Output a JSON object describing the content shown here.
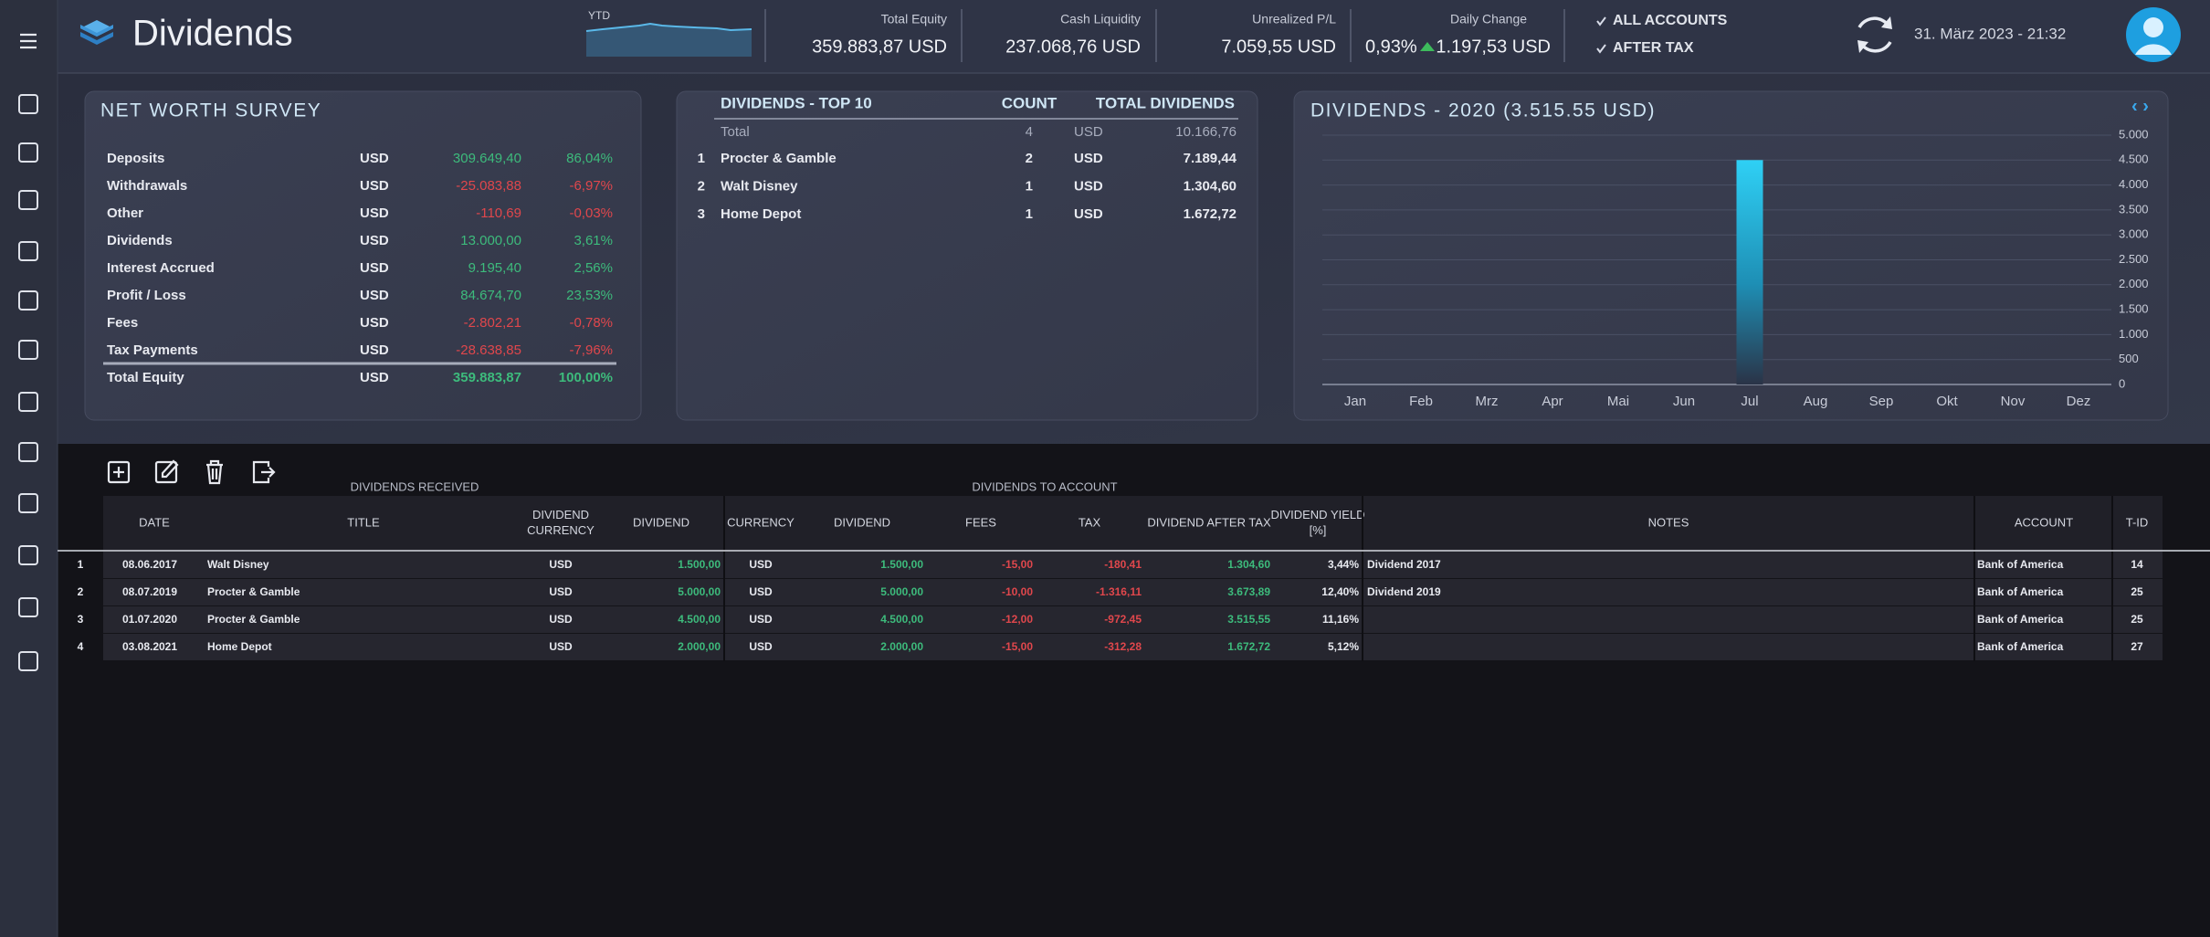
{
  "header": {
    "title": "Dividends",
    "sparkline_label": "YTD",
    "kpis": [
      {
        "label": "Total Equity",
        "value": "359.883,87 USD"
      },
      {
        "label": "Cash Liquidity",
        "value": "237.068,76 USD"
      },
      {
        "label": "Unrealized P/L",
        "value": "7.059,55 USD"
      }
    ],
    "daily_change": {
      "label": "Daily Change",
      "percent": "0,93%",
      "value": "1.197,53 USD"
    },
    "filters": [
      "ALL ACCOUNTS",
      "AFTER TAX"
    ],
    "datetime": "31. März 2023  -  21:32"
  },
  "net_worth": {
    "title": "NET WORTH SURVEY",
    "rows": [
      [
        "Deposits",
        "USD",
        "309.649,40",
        "86,04%"
      ],
      [
        "Withdrawals",
        "USD",
        "-25.083,88",
        "-6,97%"
      ],
      [
        "Other",
        "USD",
        "-110,69",
        "-0,03%"
      ],
      [
        "Dividends",
        "USD",
        "13.000,00",
        "3,61%"
      ],
      [
        "Interest Accrued",
        "USD",
        "9.195,40",
        "2,56%"
      ],
      [
        "Profit / Loss",
        "USD",
        "84.674,70",
        "23,53%"
      ],
      [
        "Fees",
        "USD",
        "-2.802,21",
        "-0,78%"
      ],
      [
        "Tax Payments",
        "USD",
        "-28.638,85",
        "-7,96%"
      ]
    ],
    "total": [
      "Total Equity",
      "USD",
      "359.883,87",
      "100,00%"
    ]
  },
  "top10": {
    "headers": [
      "DIVIDENDS - TOP 10",
      "COUNT",
      "TOTAL DIVIDENDS"
    ],
    "total": [
      "Total",
      "4",
      "USD",
      "10.166,76"
    ],
    "rows": [
      [
        "1",
        "Procter & Gamble",
        "2",
        "USD",
        "7.189,44"
      ],
      [
        "2",
        "Walt Disney",
        "1",
        "USD",
        "1.304,60"
      ],
      [
        "3",
        "Home Depot",
        "1",
        "USD",
        "1.672,72"
      ]
    ]
  },
  "chart_data": {
    "type": "bar",
    "title": "DIVIDENDS - 2020 (3.515.55 USD)",
    "categories": [
      "Jan",
      "Feb",
      "Mrz",
      "Apr",
      "Mai",
      "Jun",
      "Jul",
      "Aug",
      "Sep",
      "Okt",
      "Nov",
      "Dez"
    ],
    "values": [
      0,
      0,
      0,
      0,
      0,
      0,
      4500,
      0,
      0,
      0,
      0,
      0
    ],
    "color": "#29c6ef",
    "ylim": [
      0,
      5000
    ],
    "yticks": [
      0,
      500,
      {
        "value": 1000,
        "label": "1.000"
      },
      {
        "value": 1500,
        "label": "1.500"
      },
      {
        "value": 2000,
        "label": "2.000"
      },
      {
        "value": 2500,
        "label": "2.500"
      },
      {
        "value": 3000,
        "label": "3.000"
      },
      {
        "value": 3500,
        "label": "3.500"
      },
      {
        "value": 4000,
        "label": "4.000"
      },
      {
        "value": 4500,
        "label": "4.500"
      },
      {
        "value": 5000,
        "label": "5.000"
      }
    ],
    "grid": true
  },
  "table": {
    "group_headers": [
      "DIVIDENDS RECEIVED",
      "DIVIDENDS TO ACCOUNT"
    ],
    "columns": {
      "date": [
        "DATE"
      ],
      "title": [
        "TITLE"
      ],
      "cur": [
        "DIVIDEND",
        "CURRENCY"
      ],
      "div": [
        "DIVIDEND"
      ],
      "cur2": [
        "CURRENCY"
      ],
      "div2": [
        "DIVIDEND"
      ],
      "fees": [
        "FEES"
      ],
      "tax": [
        "TAX"
      ],
      "after": [
        "DIVIDEND AFTER TAX"
      ],
      "yield": [
        "DIVIDEND YIELD",
        "[%]"
      ],
      "notes": [
        "NOTES"
      ],
      "account": [
        "ACCOUNT"
      ],
      "tid": [
        "T-ID"
      ]
    },
    "rows": [
      {
        "n": "1",
        "date": "08.06.2017",
        "title": "Walt Disney",
        "cur": "USD",
        "div": "1.500,00",
        "cur2": "USD",
        "div2": "1.500,00",
        "fees": "-15,00",
        "tax": "-180,41",
        "after": "1.304,60",
        "yield": "3,44%",
        "notes": "Dividend 2017",
        "account": "Bank of America",
        "tid": "14"
      },
      {
        "n": "2",
        "date": "08.07.2019",
        "title": "Procter & Gamble",
        "cur": "USD",
        "div": "5.000,00",
        "cur2": "USD",
        "div2": "5.000,00",
        "fees": "-10,00",
        "tax": "-1.316,11",
        "after": "3.673,89",
        "yield": "12,40%",
        "notes": "Dividend 2019",
        "account": "Bank of America",
        "tid": "25"
      },
      {
        "n": "3",
        "date": "01.07.2020",
        "title": "Procter & Gamble",
        "cur": "USD",
        "div": "4.500,00",
        "cur2": "USD",
        "div2": "4.500,00",
        "fees": "-12,00",
        "tax": "-972,45",
        "after": "3.515,55",
        "yield": "11,16%",
        "account": "Bank of America",
        "tid": "25"
      },
      {
        "n": "4",
        "date": "03.08.2021",
        "title": "Home Depot",
        "cur": "USD",
        "div": "2.000,00",
        "cur2": "USD",
        "div2": "2.000,00",
        "fees": "-15,00",
        "tax": "-312,28",
        "after": "1.672,72",
        "yield": "5,12%",
        "account": "Bank of America",
        "tid": "27"
      }
    ]
  }
}
